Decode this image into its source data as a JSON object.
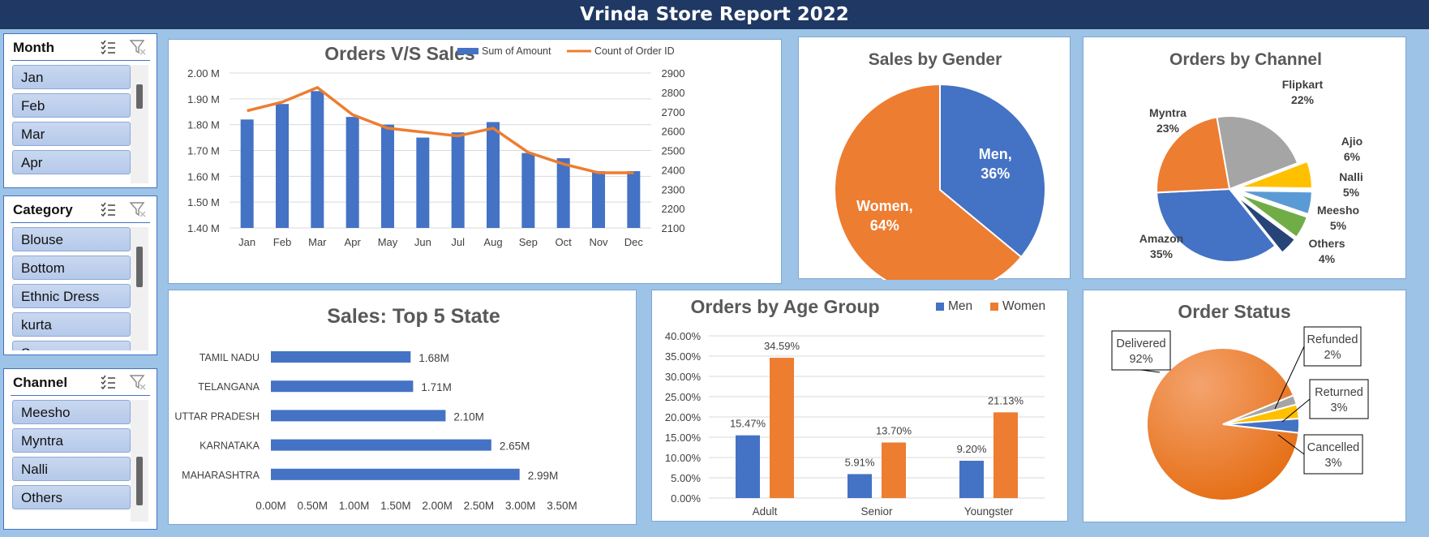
{
  "report": {
    "title": "Vrinda Store Report 2022"
  },
  "slicers": {
    "month": {
      "title": "Month",
      "items": [
        "Jan",
        "Feb",
        "Mar",
        "Apr"
      ]
    },
    "category": {
      "title": "Category",
      "items": [
        "Blouse",
        "Bottom",
        "Ethnic Dress",
        "kurta",
        "Saree"
      ]
    },
    "channel": {
      "title": "Channel",
      "items": [
        "Meesho",
        "Myntra",
        "Nalli",
        "Others"
      ]
    }
  },
  "colors": {
    "blue": "#4472c4",
    "orange": "#ed7d31",
    "gray": "#a5a5a5",
    "yellow": "#ffc000",
    "lightblue": "#5b9bd5",
    "green": "#70ad47",
    "navy": "#264478",
    "header": "#1f3864",
    "background": "#9dc3e6"
  },
  "chart_data": [
    {
      "id": "orders-vs-sales",
      "type": "bar",
      "title": "Orders V/S Sales",
      "categories": [
        "Jan",
        "Feb",
        "Mar",
        "Apr",
        "May",
        "Jun",
        "Jul",
        "Aug",
        "Sep",
        "Oct",
        "Nov",
        "Dec"
      ],
      "series": [
        {
          "name": "Sum of Amount",
          "type": "bar",
          "axis": "left",
          "values": [
            1.82,
            1.88,
            1.93,
            1.83,
            1.8,
            1.75,
            1.77,
            1.81,
            1.69,
            1.67,
            1.62,
            1.62
          ]
        },
        {
          "name": "Count of Order ID",
          "type": "line",
          "axis": "right",
          "values": [
            2705,
            2750,
            2825,
            2685,
            2615,
            2595,
            2575,
            2615,
            2490,
            2430,
            2385,
            2385
          ]
        }
      ],
      "ylim": [
        1.4,
        2.0
      ],
      "yticks": [
        "1.40 M",
        "1.50 M",
        "1.60 M",
        "1.70 M",
        "1.80 M",
        "1.90 M",
        "2.00 M"
      ],
      "y2lim": [
        2100,
        2900
      ],
      "y2ticks": [
        "2100",
        "2200",
        "2300",
        "2400",
        "2500",
        "2600",
        "2700",
        "2800",
        "2900"
      ],
      "legend": "top-right",
      "grid": true
    },
    {
      "id": "sales-by-gender",
      "type": "pie",
      "title": "Sales by Gender",
      "slices": [
        {
          "label": "Men",
          "value": 36,
          "text": "36%"
        },
        {
          "label": "Women",
          "value": 64,
          "text": "64%"
        }
      ]
    },
    {
      "id": "orders-by-channel",
      "type": "pie",
      "title": "Orders by Channel",
      "slices": [
        {
          "label": "Flipkart",
          "value": 22,
          "text": "22%"
        },
        {
          "label": "Ajio",
          "value": 6,
          "text": "6%"
        },
        {
          "label": "Nalli",
          "value": 5,
          "text": "5%"
        },
        {
          "label": "Meesho",
          "value": 5,
          "text": "5%"
        },
        {
          "label": "Others",
          "value": 4,
          "text": "4%"
        },
        {
          "label": "Amazon",
          "value": 35,
          "text": "35%"
        },
        {
          "label": "Myntra",
          "value": 23,
          "text": "23%"
        }
      ]
    },
    {
      "id": "top-5-state",
      "type": "bar",
      "orientation": "horizontal",
      "title": "Sales: Top 5 State",
      "categories": [
        "TAMIL NADU",
        "TELANGANA",
        "UTTAR PRADESH",
        "KARNATAKA",
        "MAHARASHTRA"
      ],
      "values": [
        1.68,
        1.71,
        2.1,
        2.65,
        2.99
      ],
      "labels": [
        "1.68M",
        "1.71M",
        "2.10M",
        "2.65M",
        "2.99M"
      ],
      "xlim": [
        0,
        3.5
      ],
      "xticks": [
        "0.00M",
        "0.50M",
        "1.00M",
        "1.50M",
        "2.00M",
        "2.50M",
        "3.00M",
        "3.50M"
      ]
    },
    {
      "id": "orders-by-age-group",
      "type": "bar",
      "title": "Orders by Age Group",
      "categories": [
        "Adult",
        "Senior",
        "Youngster"
      ],
      "series": [
        {
          "name": "Men",
          "values": [
            15.47,
            5.91,
            9.2
          ],
          "labels": [
            "15.47%",
            "5.91%",
            "9.20%"
          ]
        },
        {
          "name": "Women",
          "values": [
            34.59,
            13.7,
            21.13
          ],
          "labels": [
            "34.59%",
            "13.70%",
            "21.13%"
          ]
        }
      ],
      "ylim": [
        0,
        40
      ],
      "yticks": [
        "0.00%",
        "5.00%",
        "10.00%",
        "15.00%",
        "20.00%",
        "25.00%",
        "30.00%",
        "35.00%",
        "40.00%"
      ],
      "legend": "top-right",
      "grid": true
    },
    {
      "id": "order-status",
      "type": "pie",
      "title": "Order Status",
      "slices": [
        {
          "label": "Delivered",
          "value": 92,
          "text": "92%"
        },
        {
          "label": "Refunded",
          "value": 2,
          "text": "2%"
        },
        {
          "label": "Returned",
          "value": 3,
          "text": "3%"
        },
        {
          "label": "Cancelled",
          "value": 3,
          "text": "3%"
        }
      ]
    }
  ]
}
